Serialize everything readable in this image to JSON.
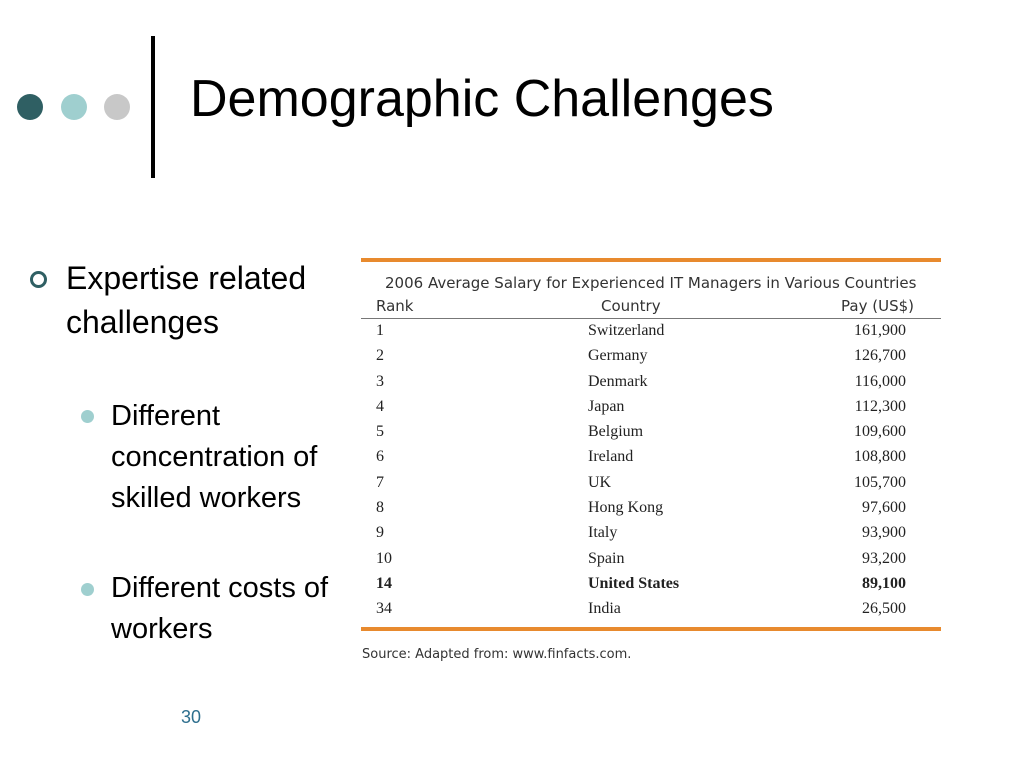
{
  "slide": {
    "title": "Demographic Challenges",
    "page_number": "30",
    "accent_colors": {
      "dark_teal": "#2f5f63",
      "light_teal": "#9fcfcf",
      "gray": "#c8c8c8",
      "orange": "#e88a2e"
    }
  },
  "bullets": {
    "level1": "Expertise related challenges",
    "level2": [
      "Different concentration of skilled workers",
      "Different costs of workers"
    ]
  },
  "table": {
    "title": "2006 Average Salary for Experienced IT Managers in Various Countries",
    "headers": {
      "rank": "Rank",
      "country": "Country",
      "pay": "Pay (US$)"
    },
    "rows": [
      {
        "rank": "1",
        "country": "Switzerland",
        "pay": "161,900"
      },
      {
        "rank": "2",
        "country": "Germany",
        "pay": "126,700"
      },
      {
        "rank": "3",
        "country": "Denmark",
        "pay": "116,000"
      },
      {
        "rank": "4",
        "country": "Japan",
        "pay": "112,300"
      },
      {
        "rank": "5",
        "country": "Belgium",
        "pay": "109,600"
      },
      {
        "rank": "6",
        "country": "Ireland",
        "pay": "108,800"
      },
      {
        "rank": "7",
        "country": "UK",
        "pay": "105,700"
      },
      {
        "rank": "8",
        "country": "Hong Kong",
        "pay": "97,600"
      },
      {
        "rank": "9",
        "country": "Italy",
        "pay": "93,900"
      },
      {
        "rank": "10",
        "country": "Spain",
        "pay": "93,200"
      },
      {
        "rank": "14",
        "country": "United States",
        "pay": "89,100",
        "highlight": true
      },
      {
        "rank": "34",
        "country": "India",
        "pay": "26,500"
      }
    ],
    "source": "Source: Adapted from: www.finfacts.com."
  }
}
